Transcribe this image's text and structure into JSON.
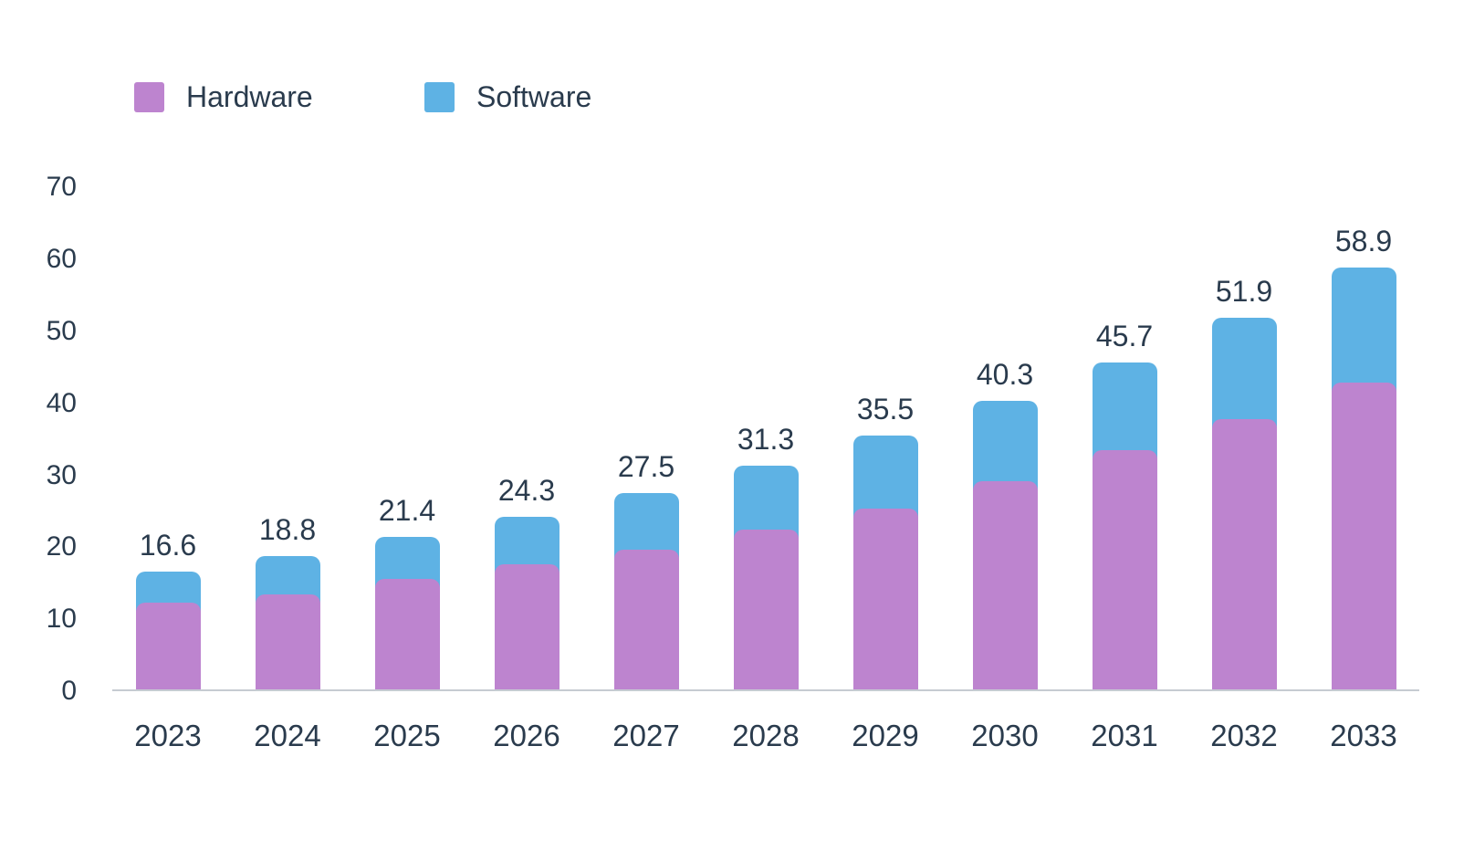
{
  "legend": {
    "items": [
      {
        "label": "Hardware",
        "color": "#BD84CF"
      },
      {
        "label": "Software",
        "color": "#5EB2E4"
      }
    ]
  },
  "chart_data": {
    "type": "bar",
    "stacked": true,
    "title": "",
    "xlabel": "",
    "ylabel": "",
    "grid": false,
    "legend_position": "top-left",
    "categories": [
      "2023",
      "2024",
      "2025",
      "2026",
      "2027",
      "2028",
      "2029",
      "2030",
      "2031",
      "2032",
      "2033"
    ],
    "series": [
      {
        "name": "Hardware",
        "color": "#BD84CF",
        "values": [
          12.3,
          13.5,
          15.6,
          17.6,
          19.7,
          22.5,
          25.4,
          29.2,
          33.5,
          37.8,
          42.9
        ]
      },
      {
        "name": "Software",
        "color": "#5EB2E4",
        "values": [
          4.3,
          5.3,
          5.8,
          6.7,
          7.8,
          8.8,
          10.1,
          11.1,
          12.2,
          14.1,
          16.0
        ]
      }
    ],
    "total_labels": [
      "16.6",
      "18.8",
      "21.4",
      "24.3",
      "27.5",
      "31.3",
      "35.5",
      "40.3",
      "45.7",
      "51.9",
      "58.9"
    ],
    "y_axis": {
      "min": 0,
      "max": 70,
      "ticks": [
        0,
        10,
        20,
        30,
        40,
        50,
        60,
        70
      ]
    },
    "colors": {
      "text": "#2A3B4D",
      "axis_line": "#C6CBD2",
      "background": "#FFFFFF"
    }
  }
}
